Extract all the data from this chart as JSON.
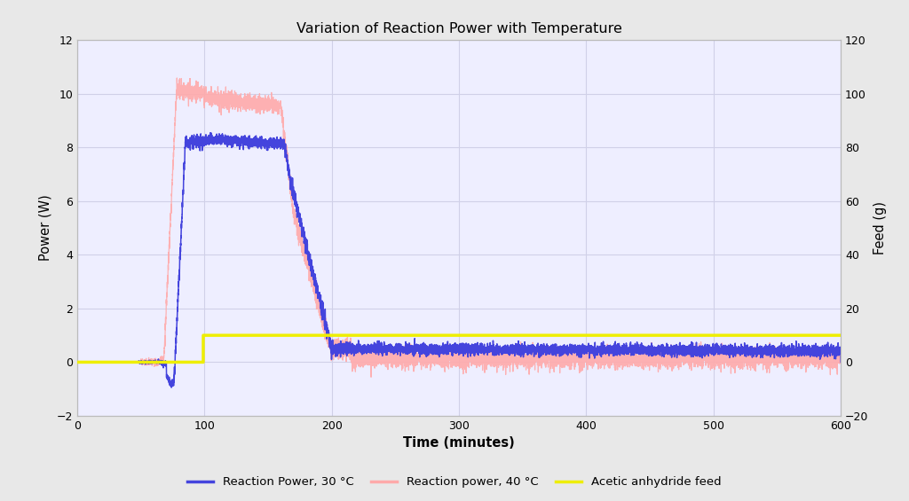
{
  "title": "Variation of Reaction Power with Temperature",
  "xlabel": "Time (minutes)",
  "ylabel_left": "Power (W)",
  "ylabel_right": "Feed (g)",
  "xlim": [
    0,
    600
  ],
  "ylim_left": [
    -2,
    12
  ],
  "ylim_right": [
    -20,
    120
  ],
  "yticks_left": [
    -2,
    0,
    2,
    4,
    6,
    8,
    10,
    12
  ],
  "yticks_right": [
    -20,
    0,
    20,
    40,
    60,
    80,
    100,
    120
  ],
  "xticks": [
    0,
    100,
    200,
    300,
    400,
    500,
    600
  ],
  "color_30": "#4444dd",
  "color_40": "#ffaaaa",
  "color_feed": "#eeee00",
  "legend_labels": [
    "Reaction Power, 30 °C",
    "Reaction power, 40 °C",
    "Acetic anhydride feed"
  ],
  "background_color": "#eeeeff",
  "grid_color": "#d0d0e8",
  "fig_background": "#ffffff",
  "outer_background": "#e8e8e8"
}
